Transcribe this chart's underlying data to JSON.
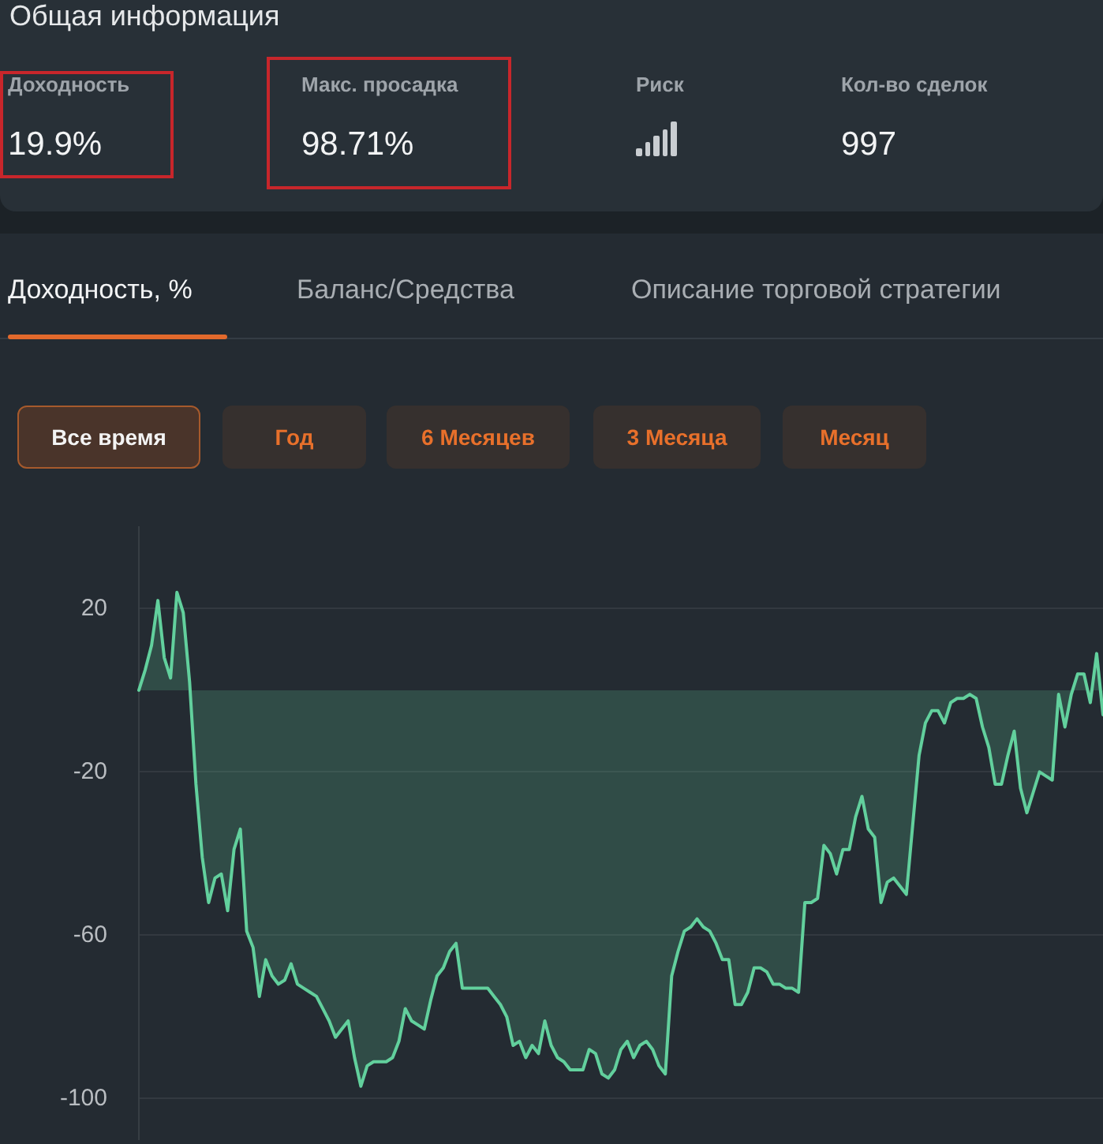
{
  "chart_data": [
    {
      "type": "other",
      "title": "Общая информация",
      "annotations": [
        "Доходность",
        "19.9%",
        "Макс. просадка",
        "98.71%",
        "Риск",
        "Кол-во сделок",
        "997"
      ]
    },
    {
      "type": "area",
      "title": "Доходность, %",
      "annotations": [
        "Баланс/Средства",
        "Описание торговой стратегии",
        "Все время",
        "Год",
        "6 Месяцев",
        "3 Месяца",
        "Месяц"
      ],
      "color": "#62d09d",
      "categories": [
        null,
        null,
        null,
        null,
        null,
        null,
        null,
        null,
        null,
        null,
        null,
        null,
        null,
        null,
        null,
        null,
        null,
        null,
        null,
        null,
        null,
        null,
        null,
        null,
        null,
        null,
        null,
        null,
        null,
        null,
        null,
        null,
        null,
        null,
        null,
        null,
        null,
        null,
        null,
        null,
        null,
        null,
        null,
        null,
        null,
        null,
        null,
        null,
        null,
        null,
        null,
        null,
        null,
        null,
        null,
        null,
        null,
        null,
        null,
        null,
        null,
        null,
        null,
        null,
        null,
        null,
        null,
        null,
        null,
        null,
        null,
        null,
        null,
        null,
        null,
        null,
        null,
        null,
        null,
        null,
        null,
        null,
        null,
        null,
        null,
        null,
        null,
        null,
        null,
        null,
        null,
        null,
        null,
        null,
        null,
        null,
        null,
        null,
        null,
        null,
        null,
        null,
        null,
        null,
        null,
        null,
        null,
        null,
        null,
        null,
        null,
        null,
        null,
        null,
        null,
        null,
        null,
        null,
        null,
        null,
        null,
        null,
        null,
        null,
        null,
        null,
        null,
        null,
        null,
        null,
        null,
        null,
        null,
        null,
        null,
        null,
        null,
        null,
        null,
        null,
        null,
        null,
        null,
        null,
        null,
        null,
        null,
        null,
        null,
        null,
        null,
        null,
        null
      ],
      "values": [
        0,
        5,
        11,
        22,
        8,
        3,
        24,
        19,
        2,
        -23,
        -41,
        -52,
        -46,
        -45,
        -54,
        -39,
        -34,
        -59,
        -63,
        -75,
        -66,
        -70,
        -72,
        -71,
        -67,
        -72,
        -73,
        -74,
        -75,
        -78,
        -81,
        -85,
        -83,
        -81,
        -90,
        -97,
        -92,
        -91,
        -91,
        -91,
        -90,
        -86,
        -78,
        -81,
        -82,
        -83,
        -76,
        -70,
        -68,
        -64,
        -62,
        -73,
        -73,
        -73,
        -73,
        -73,
        -75,
        -77,
        -80,
        -87,
        -86,
        -90,
        -87,
        -89,
        -81,
        -87,
        -90,
        -91,
        -93,
        -93,
        -93,
        -88,
        -89,
        -94,
        -95,
        -93,
        -88,
        -86,
        -90,
        -87,
        -86,
        -88,
        -92,
        -94,
        -70,
        -64,
        -59,
        -58,
        -56,
        -58,
        -59,
        -62,
        -66,
        -66,
        -77,
        -77,
        -74,
        -68,
        -68,
        -69,
        -72,
        -72,
        -73,
        -73,
        -74,
        -52,
        -52,
        -51,
        -38,
        -40,
        -45,
        -39,
        -39,
        -31,
        -26,
        -34,
        -36,
        -52,
        -47,
        -46,
        -48,
        -50,
        -33,
        -16,
        -8,
        -5,
        -5,
        -8,
        -3,
        -2,
        -2,
        -1,
        -2,
        -9,
        -14,
        -23,
        -23,
        -16,
        -10,
        -24,
        -30,
        -25,
        -20,
        -21,
        -22,
        -1,
        -9,
        -1,
        4,
        4,
        -3,
        9,
        -6
      ],
      "ylim": [
        -110,
        40
      ],
      "yticks": [
        -100,
        -60,
        -20,
        20
      ],
      "grid": "y",
      "tick_labels": "y"
    }
  ]
}
